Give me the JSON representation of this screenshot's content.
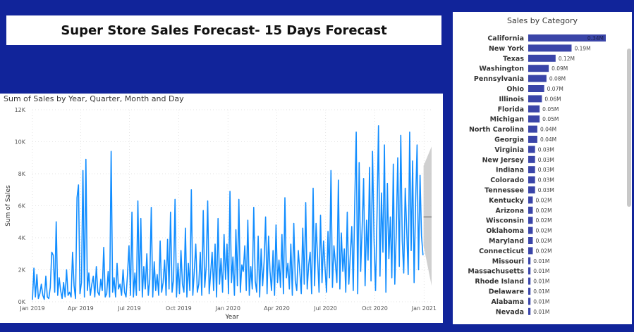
{
  "header": {
    "title": "Super  Store Sales Forecast- 15 Days Forecast"
  },
  "colors": {
    "line": "#118dff",
    "bar": "#3a45a8",
    "forecast_band": "#c8c8c8",
    "forecast_line": "#555555",
    "background": "#11249a"
  },
  "chart_data": [
    {
      "type": "line",
      "title": "Sum of Sales by Year, Quarter, Month and Day",
      "xlabel": "Year",
      "ylabel": "Sum of Sales",
      "x_ticks": [
        "Jan 2019",
        "Apr 2019",
        "Jul 2019",
        "Oct 2019",
        "Jan 2020",
        "Apr 2020",
        "Jul 2020",
        "Oct 2020",
        "Jan 2021"
      ],
      "y_ticks": [
        "0K",
        "2K",
        "4K",
        "6K",
        "8K",
        "10K",
        "12K"
      ],
      "ylim": [
        0,
        12000
      ],
      "xlim": [
        "2019-01-01",
        "2021-01-15"
      ],
      "grid": true,
      "series": [
        {
          "x_start": "2019-01-01",
          "x_end": "2020-12-30",
          "values": [
            120,
            2100,
            300,
            1700,
            200,
            500,
            1100,
            400,
            150,
            1600,
            300,
            200,
            900,
            3100,
            2900,
            600,
            5000,
            400,
            1500,
            700,
            200,
            1200,
            300,
            2000,
            400,
            600,
            300,
            3100,
            1000,
            200,
            6500,
            7300,
            500,
            1200,
            8200,
            300,
            8900,
            700,
            1800,
            400,
            1100,
            1600,
            300,
            2200,
            600,
            400,
            1400,
            700,
            3400,
            300,
            500,
            1900,
            300,
            9400,
            600,
            1500,
            300,
            2400,
            800,
            1100,
            400,
            2000,
            600,
            300,
            1700,
            3500,
            400,
            5600,
            300,
            1800,
            400,
            6300,
            700,
            5200,
            300,
            2200,
            800,
            3000,
            400,
            1400,
            5900,
            300,
            2500,
            700,
            1700,
            400,
            3800,
            600,
            1200,
            2600,
            400,
            3900,
            800,
            5600,
            600,
            1400,
            6400,
            300,
            2400,
            500,
            3200,
            1100,
            600,
            4600,
            300,
            2400,
            700,
            7000,
            400,
            1900,
            3600,
            600,
            1100,
            3100,
            400,
            5700,
            900,
            2200,
            6300,
            500,
            1800,
            3100,
            700,
            3600,
            300,
            5200,
            1100,
            2700,
            600,
            4200,
            1400,
            3600,
            500,
            6900,
            1200,
            2800,
            400,
            4500,
            1000,
            6400,
            600,
            2300,
            1900,
            3500,
            700,
            5100,
            400,
            2200,
            800,
            5900,
            1300,
            600,
            4100,
            300,
            3300,
            1000,
            2500,
            5300,
            500,
            4100,
            1900,
            700,
            3200,
            400,
            4800,
            1200,
            2600,
            900,
            4200,
            500,
            6500,
            1500,
            2400,
            800,
            3600,
            400,
            4900,
            1300,
            700,
            3200,
            1900,
            500,
            4600,
            1100,
            6200,
            800,
            2300,
            3100,
            500,
            7100,
            1000,
            4900,
            2800,
            600,
            5400,
            1200,
            3800,
            2100,
            600,
            4400,
            1500,
            8200,
            900,
            3500,
            2400,
            1200,
            7600,
            800,
            4300,
            1900,
            3300,
            600,
            5600,
            1100,
            2900,
            4700,
            700,
            6100,
            10600,
            500,
            8700,
            1900,
            4600,
            7700,
            1000,
            5100,
            2600,
            8400,
            1300,
            9400,
            3900,
            700,
            5400,
            11000,
            1600,
            6800,
            3100,
            9800,
            600,
            7400,
            2700,
            5300,
            1500,
            8600,
            1100,
            4300,
            9000,
            2200,
            10400,
            3800,
            1800,
            7100,
            4500,
            1700,
            10600,
            3200,
            8800,
            1200,
            6200,
            9800,
            2000,
            7900,
            4100,
            2900
          ],
          "name": ""
        }
      ],
      "forecast": {
        "start": "2020-12-31",
        "end": "2021-01-15",
        "mean": 5300,
        "lower_start": 3500,
        "lower_end": 1000,
        "upper_start": 8500,
        "upper_end": 9700
      }
    },
    {
      "type": "bar",
      "orientation": "horizontal",
      "title": "Sales by Category",
      "categories": [
        "California",
        "New York",
        "Texas",
        "Washington",
        "Pennsylvania",
        "Ohio",
        "Illinois",
        "Florida",
        "Michigan",
        "North Carolina",
        "Georgia",
        "Virginia",
        "New Jersey",
        "Indiana",
        "Colorado",
        "Tennessee",
        "Kentucky",
        "Arizona",
        "Wisconsin",
        "Oklahoma",
        "Maryland",
        "Connecticut",
        "Missouri",
        "Massachusetts",
        "Rhode Island",
        "Delaware",
        "Alabama",
        "Nevada"
      ],
      "values": [
        0.34,
        0.19,
        0.12,
        0.09,
        0.08,
        0.07,
        0.06,
        0.05,
        0.05,
        0.04,
        0.04,
        0.03,
        0.03,
        0.03,
        0.03,
        0.03,
        0.02,
        0.02,
        0.02,
        0.02,
        0.02,
        0.02,
        0.01,
        0.01,
        0.01,
        0.01,
        0.01,
        0.01
      ],
      "data_labels": [
        "0.34M",
        "0.19M",
        "0.12M",
        "0.09M",
        "0.08M",
        "0.07M",
        "0.06M",
        "0.05M",
        "0.05M",
        "0.04M",
        "0.04M",
        "0.03M",
        "0.03M",
        "0.03M",
        "0.03M",
        "0.03M",
        "0.02M",
        "0.02M",
        "0.02M",
        "0.02M",
        "0.02M",
        "0.02M",
        "0.01M",
        "0.01M",
        "0.01M",
        "0.01M",
        "0.01M",
        "0.01M"
      ],
      "xlim": [
        0,
        0.34
      ]
    }
  ]
}
